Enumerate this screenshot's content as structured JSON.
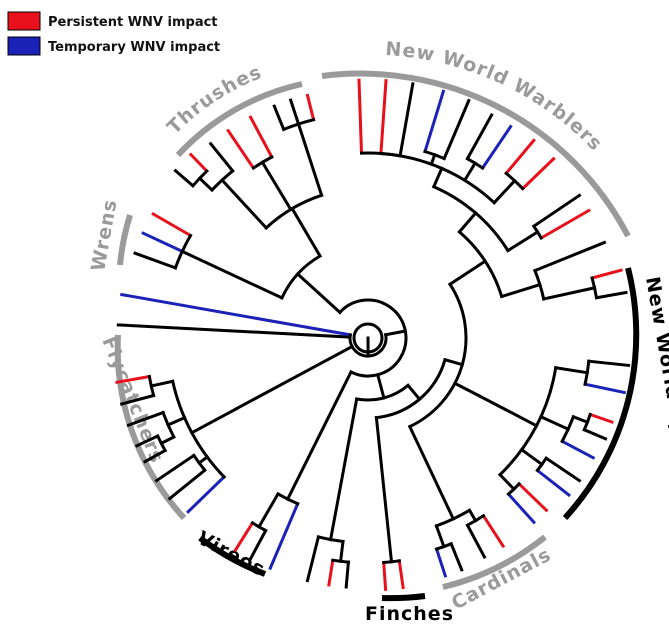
{
  "legend": {
    "items": [
      {
        "label": "Persistent WNV impact",
        "color": "#e8101a"
      },
      {
        "label": "Temporary WNV impact",
        "color": "#1a22b8"
      }
    ]
  },
  "colors": {
    "branch_default": "#000000",
    "persistent": "#e8101a",
    "temporary": "#1a22b8",
    "clade_grey": "#9a9a9a",
    "clade_black": "#000000"
  },
  "clades": {
    "new_world_warblers": "New World Warblers",
    "thrushes": "Thrushes",
    "wrens": "Wrens",
    "flycatchers": "Flycatchers",
    "vireos": "Vireos",
    "finches": "Finches",
    "cardinals": "Cardinals",
    "new_world_sparrows": "New World Sparrows"
  }
}
